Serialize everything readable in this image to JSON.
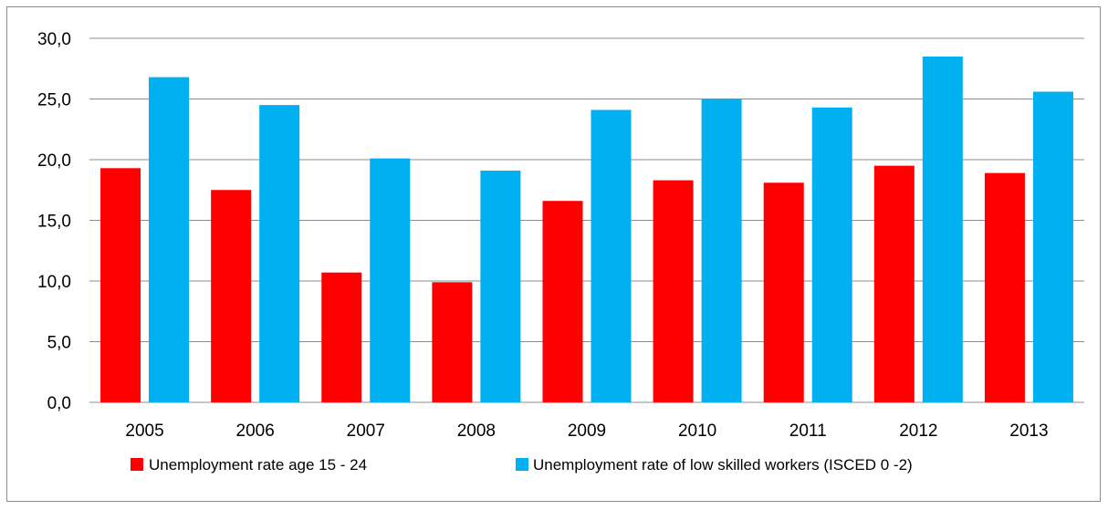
{
  "chart_data": {
    "type": "bar",
    "title": "",
    "xlabel": "",
    "ylabel": "",
    "categories": [
      "2005",
      "2006",
      "2007",
      "2008",
      "2009",
      "2010",
      "2011",
      "2012",
      "2013"
    ],
    "series": [
      {
        "name": "Unemployment rate age 15 - 24",
        "color": "#ff0000",
        "values": [
          19.3,
          17.5,
          10.7,
          9.9,
          16.6,
          18.3,
          18.1,
          19.5,
          18.9
        ]
      },
      {
        "name": "Unemployment rate of low skilled workers (ISCED 0 -2)",
        "color": "#00b0f0",
        "values": [
          26.8,
          24.5,
          20.1,
          19.1,
          24.1,
          25.0,
          24.3,
          28.5,
          25.6
        ]
      }
    ],
    "ylim": [
      0,
      30
    ],
    "ytick_labels": [
      "0,0",
      "5,0",
      "10,0",
      "15,0",
      "20,0",
      "25,0",
      "30,0"
    ],
    "grid": true,
    "legend": "bottom"
  }
}
